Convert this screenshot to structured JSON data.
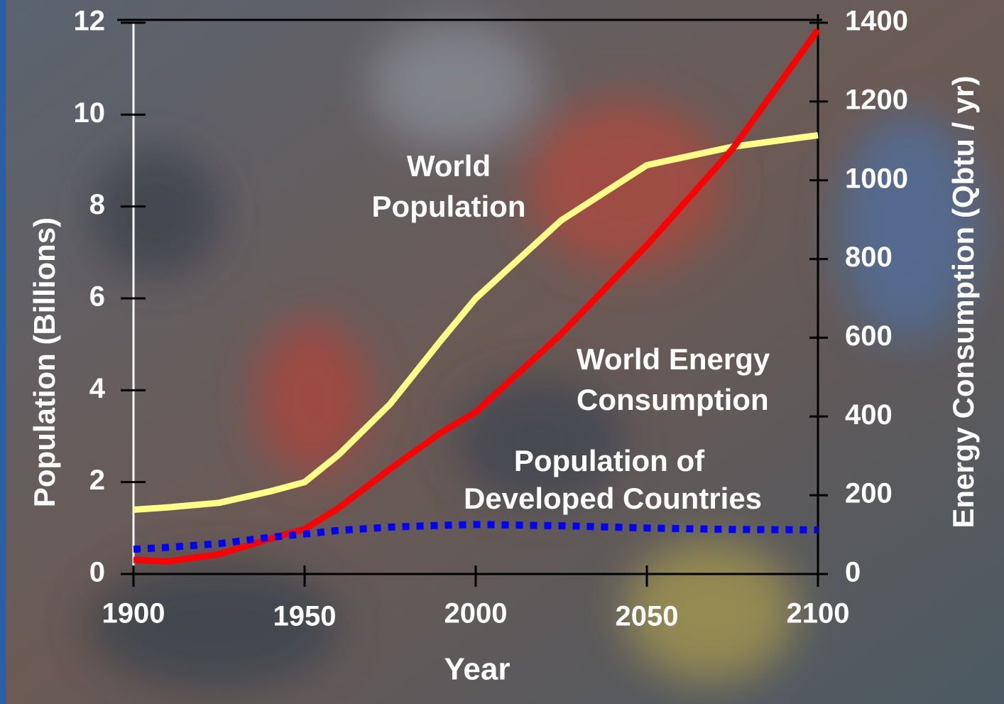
{
  "chart_data": {
    "type": "line",
    "x_label": "Year",
    "y_label": "Population (Billions)",
    "y2_label": "Energy Consumption (Qbtu / yr)",
    "xlim": [
      1900,
      2100
    ],
    "xticks": [
      1900,
      1950,
      2000,
      2050,
      2100
    ],
    "ylim": [
      0,
      12
    ],
    "yticks": [
      0,
      2,
      4,
      6,
      8,
      10,
      12
    ],
    "y2lim": [
      0,
      1400
    ],
    "y2ticks": [
      0,
      200,
      400,
      600,
      800,
      1000,
      1200,
      1400
    ],
    "x": [
      1900,
      1910,
      1925,
      1940,
      1950,
      1960,
      1975,
      1990,
      2000,
      2025,
      2050,
      2075,
      2100
    ],
    "series": [
      {
        "name": "World Population",
        "color": "#ffff88",
        "style": "solid",
        "values": [
          1.4,
          1.45,
          1.55,
          1.8,
          2.0,
          2.6,
          3.7,
          5.1,
          6.0,
          7.7,
          8.9,
          9.3,
          9.55
        ]
      },
      {
        "name": "World Energy Consumption",
        "color": "#ff0000",
        "style": "solid",
        "axis": "y2",
        "values": [
          36,
          32,
          50,
          90,
          114,
          168,
          267,
          360,
          411,
          610,
          835,
          1079,
          1382
        ]
      },
      {
        "name": "Population of Developed Countries",
        "color": "#0000ff",
        "style": "dotted",
        "values": [
          0.54,
          0.58,
          0.66,
          0.8,
          0.87,
          0.95,
          1.02,
          1.06,
          1.08,
          1.05,
          1.0,
          0.97,
          0.96
        ]
      }
    ],
    "annotations": [
      [
        "World",
        "Population"
      ],
      [
        "World Energy",
        "Consumption"
      ],
      [
        "Population of",
        "Developed Countries"
      ]
    ]
  }
}
